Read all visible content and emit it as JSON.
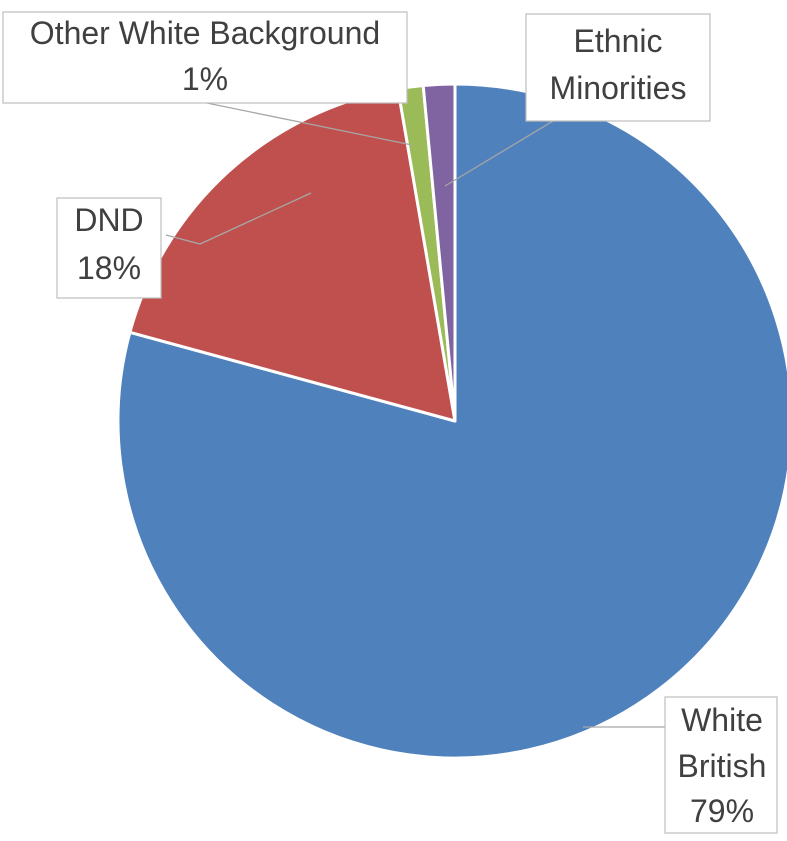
{
  "chart_data": {
    "type": "pie",
    "title": "",
    "slices": [
      {
        "name": "White British",
        "value": 79,
        "label_lines": [
          "White",
          "British",
          "79%"
        ],
        "color": "#4f81bd"
      },
      {
        "name": "DND",
        "value": 18,
        "label_lines": [
          "DND",
          "18%"
        ],
        "color": "#c0504d"
      },
      {
        "name": "Other White Background",
        "value": 1.2,
        "label_lines": [
          "Other White Background",
          "1%"
        ],
        "color": "#9bbb59"
      },
      {
        "name": "Ethnic Minorities",
        "value": 1.5,
        "label_lines": [
          "Ethnic",
          "Minorities"
        ],
        "color": "#8064a2"
      }
    ],
    "start": "12 o'clock",
    "direction": "clockwise",
    "legend": "none",
    "data_labels": "outside with leader lines"
  }
}
